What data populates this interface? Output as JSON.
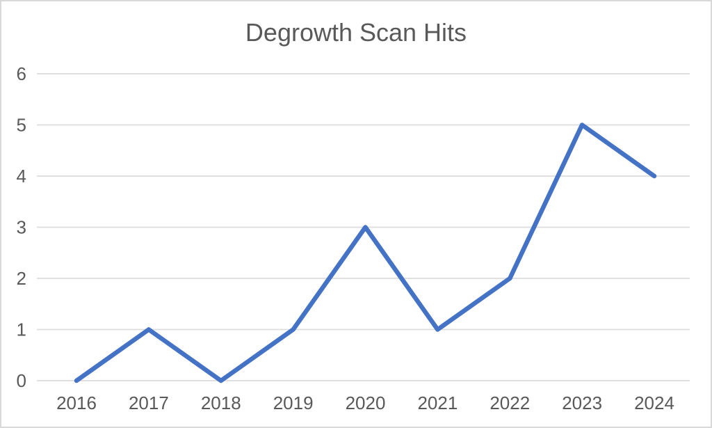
{
  "chart": {
    "title": "Degrowth Scan Hits"
  },
  "chart_data": {
    "type": "line",
    "title": "Degrowth Scan Hits",
    "categories": [
      "2016",
      "2017",
      "2018",
      "2019",
      "2020",
      "2021",
      "2022",
      "2023",
      "2024"
    ],
    "values": [
      0,
      1,
      0,
      1,
      3,
      1,
      2,
      5,
      4
    ],
    "xlabel": "",
    "ylabel": "",
    "ylim": [
      0,
      6
    ],
    "ytick_interval": 1,
    "yticks": [
      "0",
      "1",
      "2",
      "3",
      "4",
      "5",
      "6"
    ],
    "grid": true,
    "legend": false,
    "colors": {
      "line": "#4472C4",
      "gridline": "#dcdcdc",
      "text": "#595959",
      "frame_border": "#d9d9d9",
      "background": "#ffffff"
    }
  }
}
